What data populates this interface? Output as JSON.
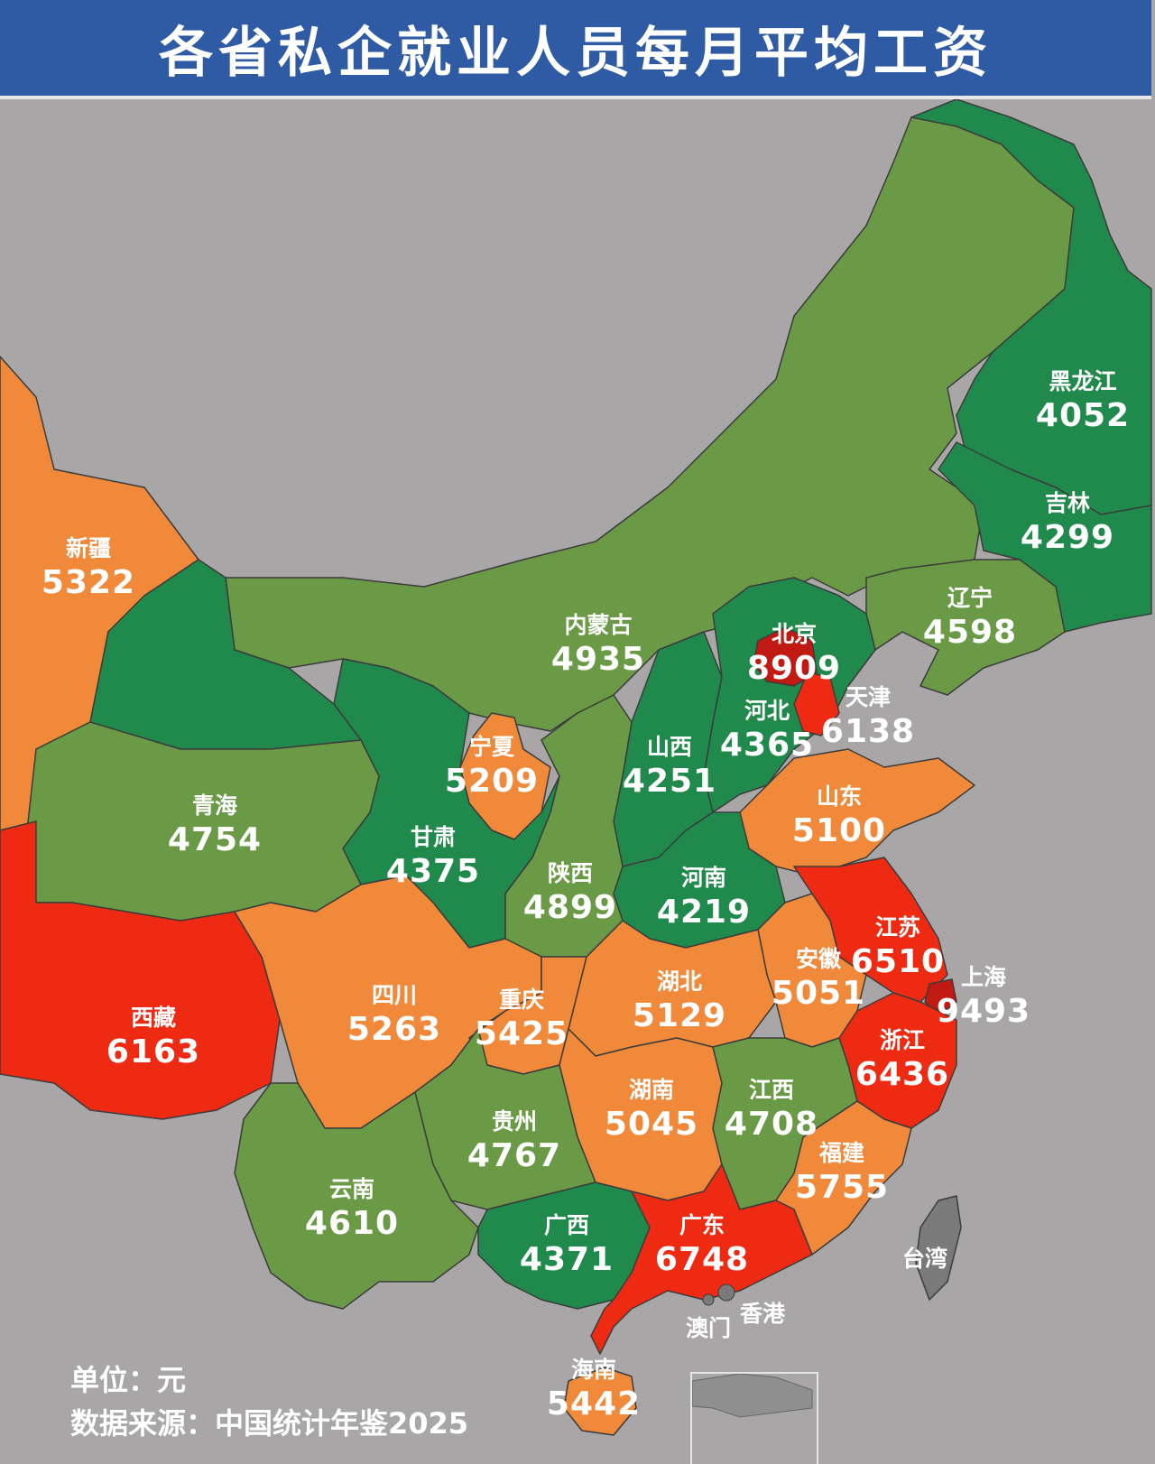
{
  "title": "各省私企就业人员每月平均工资",
  "colors": {
    "background": "#a9a6a8",
    "header": "#2f5aa4",
    "dark_green": "#1f8a4c",
    "light_green": "#6a9a45",
    "orange": "#f0893a",
    "red": "#ee2a12",
    "dark_red": "#c01a12"
  },
  "provinces": [
    {
      "name": "黑龙江",
      "value": "4052",
      "color": "dark_green"
    },
    {
      "name": "吉林",
      "value": "4299",
      "color": "dark_green"
    },
    {
      "name": "辽宁",
      "value": "4598",
      "color": "light_green"
    },
    {
      "name": "北京",
      "value": "8909",
      "color": "dark_red"
    },
    {
      "name": "天津",
      "value": "6138",
      "color": "red"
    },
    {
      "name": "河北",
      "value": "4365",
      "color": "dark_green"
    },
    {
      "name": "内蒙古",
      "value": "4935",
      "color": "light_green"
    },
    {
      "name": "新疆",
      "value": "5322",
      "color": "orange"
    },
    {
      "name": "宁夏",
      "value": "5209",
      "color": "orange"
    },
    {
      "name": "山西",
      "value": "4251",
      "color": "dark_green"
    },
    {
      "name": "山东",
      "value": "5100",
      "color": "orange"
    },
    {
      "name": "青海",
      "value": "4754",
      "color": "light_green"
    },
    {
      "name": "甘肃",
      "value": "4375",
      "color": "dark_green"
    },
    {
      "name": "陕西",
      "value": "4899",
      "color": "light_green"
    },
    {
      "name": "河南",
      "value": "4219",
      "color": "dark_green"
    },
    {
      "name": "江苏",
      "value": "6510",
      "color": "red"
    },
    {
      "name": "安徽",
      "value": "5051",
      "color": "orange"
    },
    {
      "name": "上海",
      "value": "9493",
      "color": "dark_red"
    },
    {
      "name": "西藏",
      "value": "6163",
      "color": "red"
    },
    {
      "name": "四川",
      "value": "5263",
      "color": "orange"
    },
    {
      "name": "重庆",
      "value": "5425",
      "color": "orange"
    },
    {
      "name": "湖北",
      "value": "5129",
      "color": "orange"
    },
    {
      "name": "浙江",
      "value": "6436",
      "color": "red"
    },
    {
      "name": "湖南",
      "value": "5045",
      "color": "orange"
    },
    {
      "name": "江西",
      "value": "4708",
      "color": "light_green"
    },
    {
      "name": "贵州",
      "value": "4767",
      "color": "light_green"
    },
    {
      "name": "福建",
      "value": "5755",
      "color": "orange"
    },
    {
      "name": "云南",
      "value": "4610",
      "color": "light_green"
    },
    {
      "name": "广西",
      "value": "4371",
      "color": "dark_green"
    },
    {
      "name": "广东",
      "value": "6748",
      "color": "red"
    },
    {
      "name": "海南",
      "value": "5442",
      "color": "orange"
    }
  ],
  "unlabeled_regions": [
    "台湾",
    "香港",
    "澳门"
  ],
  "footer": {
    "unit": "单位：元",
    "source": "数据来源：中国统计年鉴2025"
  }
}
